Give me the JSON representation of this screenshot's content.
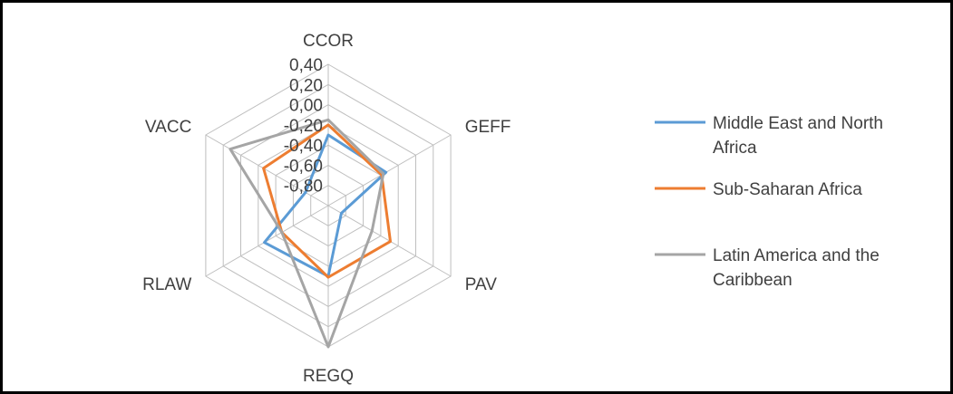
{
  "chart_data": {
    "type": "radar",
    "axes": [
      "CCOR",
      "GEFF",
      "PAV",
      "REGQ",
      "RLAW",
      "VACC"
    ],
    "range": [
      -1.0,
      0.4
    ],
    "ticks": [
      "0,40",
      "0,20",
      "0,00",
      "-0,20",
      "-0,40",
      "-0,60",
      "-0,80"
    ],
    "tick_values": [
      0.4,
      0.2,
      0.0,
      -0.2,
      -0.4,
      -0.6,
      -0.8
    ],
    "grid": true,
    "legend_position": "right",
    "series": [
      {
        "name": "Middle East and North Africa",
        "color": "#5B9BD5",
        "values": [
          -0.3,
          -0.34,
          -0.85,
          -0.3,
          -0.27,
          -0.74
        ]
      },
      {
        "name": "Sub-Saharan Africa",
        "color": "#ED7D31",
        "values": [
          -0.2,
          -0.39,
          -0.29,
          -0.29,
          -0.47,
          -0.26
        ]
      },
      {
        "name": "Latin America and the Caribbean",
        "color": "#A5A5A5",
        "values": [
          -0.15,
          -0.37,
          -0.5,
          0.4,
          -0.47,
          0.12
        ]
      }
    ]
  }
}
